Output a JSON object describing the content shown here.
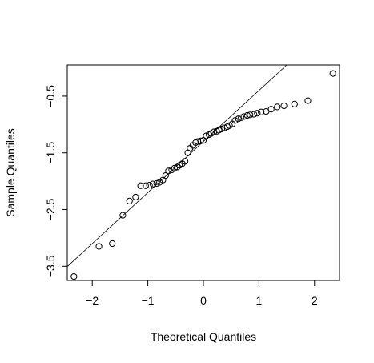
{
  "chart_data": {
    "type": "scatter",
    "title": "",
    "xlabel": "Theoretical Quantiles",
    "ylabel": "Sample Quantiles",
    "xlim": [
      -2.45,
      2.45
    ],
    "ylim": [
      -3.75,
      0.05
    ],
    "xticks": [
      -2,
      -1,
      0,
      1,
      2
    ],
    "xtick_labels": [
      "−2",
      "−1",
      "0",
      "1",
      "2"
    ],
    "yticks": [
      -3.5,
      -2.5,
      -1.5,
      -0.5
    ],
    "ytick_labels": [
      "−3.5",
      "−2.5",
      "−1.5",
      "−0.5"
    ],
    "grid": false,
    "marker": "open-circle",
    "reference_line": {
      "intercept": -1.3,
      "slope": 0.9
    },
    "points": [
      [
        -2.33,
        -3.68
      ],
      [
        -1.88,
        -3.15
      ],
      [
        -1.64,
        -3.1
      ],
      [
        -1.45,
        -2.6
      ],
      [
        -1.33,
        -2.35
      ],
      [
        -1.22,
        -2.28
      ],
      [
        -1.13,
        -2.08
      ],
      [
        -1.04,
        -2.08
      ],
      [
        -0.97,
        -2.07
      ],
      [
        -0.91,
        -2.05
      ],
      [
        -0.84,
        -2.04
      ],
      [
        -0.79,
        -2.02
      ],
      [
        -0.73,
        -1.98
      ],
      [
        -0.68,
        -1.9
      ],
      [
        -0.63,
        -1.82
      ],
      [
        -0.57,
        -1.8
      ],
      [
        -0.52,
        -1.77
      ],
      [
        -0.47,
        -1.75
      ],
      [
        -0.43,
        -1.72
      ],
      [
        -0.38,
        -1.69
      ],
      [
        -0.33,
        -1.65
      ],
      [
        -0.28,
        -1.5
      ],
      [
        -0.24,
        -1.42
      ],
      [
        -0.19,
        -1.37
      ],
      [
        -0.14,
        -1.32
      ],
      [
        -0.1,
        -1.3
      ],
      [
        -0.05,
        -1.29
      ],
      [
        0.0,
        -1.28
      ],
      [
        0.05,
        -1.2
      ],
      [
        0.1,
        -1.18
      ],
      [
        0.14,
        -1.16
      ],
      [
        0.19,
        -1.13
      ],
      [
        0.24,
        -1.12
      ],
      [
        0.28,
        -1.1
      ],
      [
        0.33,
        -1.08
      ],
      [
        0.38,
        -1.06
      ],
      [
        0.43,
        -1.04
      ],
      [
        0.47,
        -1.02
      ],
      [
        0.52,
        -0.99
      ],
      [
        0.57,
        -0.93
      ],
      [
        0.63,
        -0.9
      ],
      [
        0.68,
        -0.88
      ],
      [
        0.73,
        -0.86
      ],
      [
        0.79,
        -0.84
      ],
      [
        0.84,
        -0.83
      ],
      [
        0.91,
        -0.82
      ],
      [
        0.97,
        -0.8
      ],
      [
        1.04,
        -0.78
      ],
      [
        1.13,
        -0.77
      ],
      [
        1.22,
        -0.73
      ],
      [
        1.33,
        -0.69
      ],
      [
        1.45,
        -0.67
      ],
      [
        1.64,
        -0.64
      ],
      [
        1.88,
        -0.58
      ],
      [
        2.33,
        -0.1
      ]
    ]
  }
}
